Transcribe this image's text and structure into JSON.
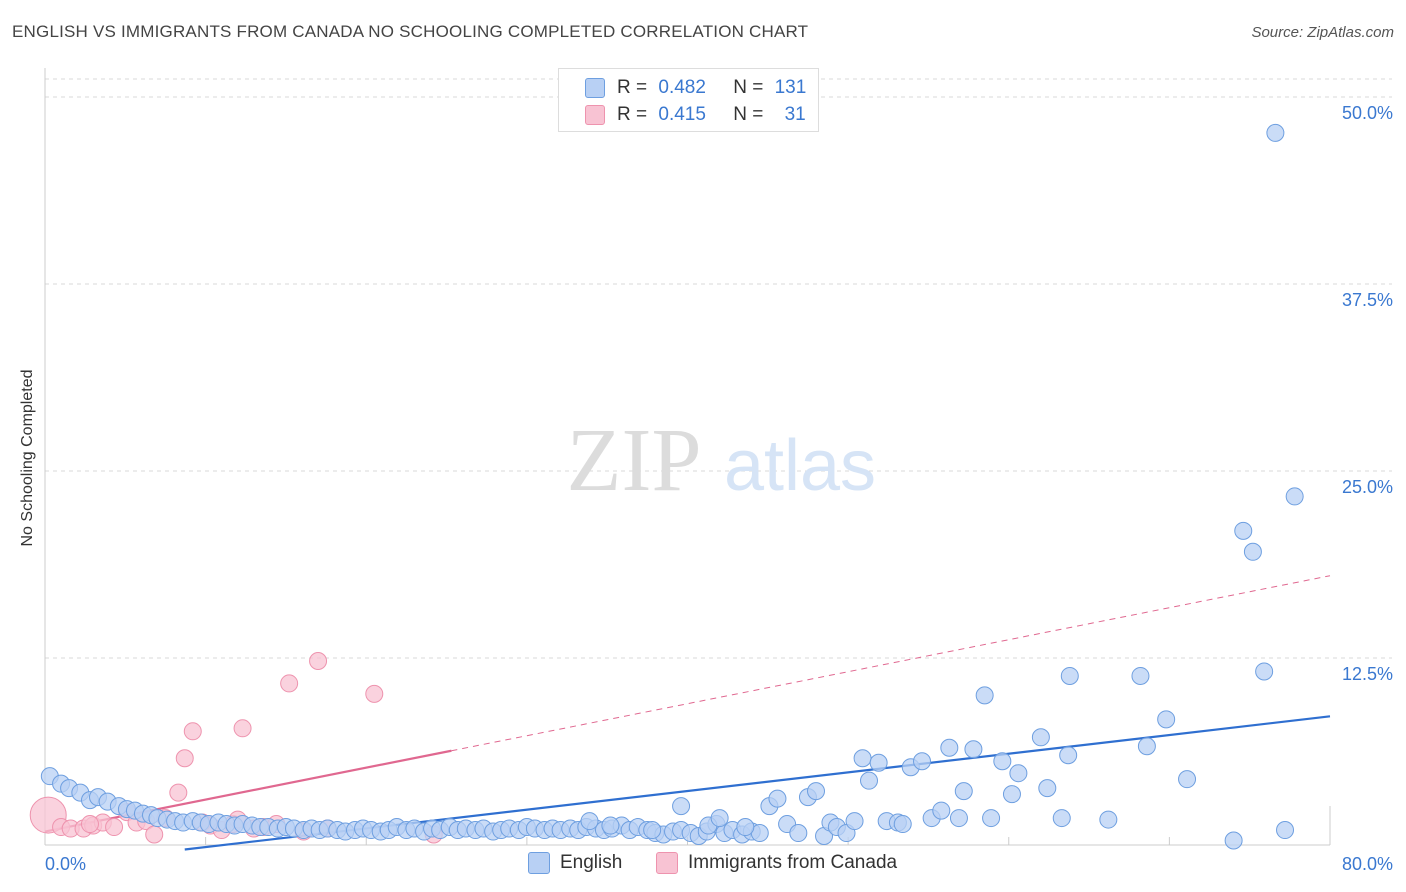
{
  "title": "ENGLISH VS IMMIGRANTS FROM CANADA NO SCHOOLING COMPLETED CORRELATION CHART",
  "source": "Source: ZipAtlas.com",
  "watermark": {
    "zip": "ZIP",
    "atlas": "atlas"
  },
  "legend": {
    "english": {
      "r_label": "R =",
      "r_value": "0.482",
      "n_label": "N =",
      "n_value": "131"
    },
    "canada": {
      "r_label": "R =",
      "r_value": "0.415",
      "n_label": "N =",
      "n_value": "31"
    }
  },
  "colors": {
    "english_fill": "#b8d0f4",
    "english_stroke": "#6e9fe0",
    "english_line": "#2f6fd0",
    "canada_fill": "#f8c3d3",
    "canada_stroke": "#ee93ae",
    "canada_line": "#e06890",
    "grid": "#d8d8d8",
    "axis_text": "#3a78d0"
  },
  "chart_data": {
    "type": "scatter",
    "title": "ENGLISH VS IMMIGRANTS FROM CANADA NO SCHOOLING COMPLETED CORRELATION CHART",
    "xlabel": "",
    "ylabel": "No Schooling Completed",
    "xlim": [
      0,
      80
    ],
    "ylim": [
      0,
      50
    ],
    "x_tick_labels": [
      "0.0%",
      "80.0%"
    ],
    "y_ticks": [
      12.5,
      25.0,
      37.5,
      50.0
    ],
    "y_tick_labels": [
      "12.5%",
      "25.0%",
      "37.5%",
      "50.0%"
    ],
    "grid": true,
    "legend_position": "top-center",
    "series": [
      {
        "name": "English",
        "r": 0.482,
        "n": 131,
        "trend": {
          "x0": 8.7,
          "y0": -0.3,
          "x1": 80.0,
          "y1": 8.6
        },
        "points": [
          [
            0.3,
            4.6
          ],
          [
            1.0,
            4.1
          ],
          [
            1.5,
            3.8
          ],
          [
            2.2,
            3.5
          ],
          [
            2.8,
            3.0
          ],
          [
            3.3,
            3.2
          ],
          [
            3.9,
            2.9
          ],
          [
            4.6,
            2.6
          ],
          [
            5.1,
            2.4
          ],
          [
            5.6,
            2.3
          ],
          [
            6.1,
            2.1
          ],
          [
            6.6,
            2.0
          ],
          [
            7.0,
            1.8
          ],
          [
            7.6,
            1.7
          ],
          [
            8.1,
            1.6
          ],
          [
            8.6,
            1.5
          ],
          [
            9.2,
            1.6
          ],
          [
            9.7,
            1.5
          ],
          [
            10.2,
            1.4
          ],
          [
            10.8,
            1.5
          ],
          [
            11.3,
            1.4
          ],
          [
            11.8,
            1.3
          ],
          [
            12.3,
            1.4
          ],
          [
            12.9,
            1.3
          ],
          [
            13.4,
            1.2
          ],
          [
            13.9,
            1.2
          ],
          [
            14.5,
            1.1
          ],
          [
            15.0,
            1.2
          ],
          [
            15.5,
            1.1
          ],
          [
            16.1,
            1.0
          ],
          [
            16.6,
            1.1
          ],
          [
            17.1,
            1.0
          ],
          [
            17.6,
            1.1
          ],
          [
            18.2,
            1.0
          ],
          [
            18.7,
            0.9
          ],
          [
            19.3,
            1.0
          ],
          [
            19.8,
            1.1
          ],
          [
            20.3,
            1.0
          ],
          [
            20.9,
            0.9
          ],
          [
            21.4,
            1.0
          ],
          [
            21.9,
            1.2
          ],
          [
            22.5,
            1.0
          ],
          [
            23.0,
            1.1
          ],
          [
            23.6,
            0.9
          ],
          [
            24.1,
            1.1
          ],
          [
            24.6,
            1.0
          ],
          [
            25.2,
            1.2
          ],
          [
            25.7,
            1.0
          ],
          [
            26.2,
            1.1
          ],
          [
            26.8,
            1.0
          ],
          [
            27.3,
            1.1
          ],
          [
            27.9,
            0.9
          ],
          [
            28.4,
            1.0
          ],
          [
            28.9,
            1.1
          ],
          [
            29.5,
            1.0
          ],
          [
            30.0,
            1.2
          ],
          [
            30.5,
            1.1
          ],
          [
            31.1,
            1.0
          ],
          [
            31.6,
            1.1
          ],
          [
            32.1,
            1.0
          ],
          [
            32.7,
            1.1
          ],
          [
            33.2,
            1.0
          ],
          [
            33.7,
            1.2
          ],
          [
            34.3,
            1.1
          ],
          [
            34.8,
            1.0
          ],
          [
            35.3,
            1.1
          ],
          [
            35.9,
            1.3
          ],
          [
            36.4,
            1.0
          ],
          [
            36.9,
            1.2
          ],
          [
            37.5,
            1.0
          ],
          [
            38.0,
            0.8
          ],
          [
            38.5,
            0.7
          ],
          [
            39.1,
            0.9
          ],
          [
            39.6,
            1.0
          ],
          [
            40.2,
            0.8
          ],
          [
            40.7,
            0.6
          ],
          [
            41.2,
            0.9
          ],
          [
            41.8,
            1.4
          ],
          [
            42.3,
            0.8
          ],
          [
            42.8,
            1.0
          ],
          [
            43.4,
            0.7
          ],
          [
            44.0,
            0.9
          ],
          [
            44.5,
            0.8
          ],
          [
            33.9,
            1.6
          ],
          [
            35.2,
            1.3
          ],
          [
            37.8,
            1.0
          ],
          [
            39.6,
            2.6
          ],
          [
            41.3,
            1.3
          ],
          [
            42.0,
            1.8
          ],
          [
            43.6,
            1.2
          ],
          [
            45.1,
            2.6
          ],
          [
            45.6,
            3.1
          ],
          [
            46.2,
            1.4
          ],
          [
            46.9,
            0.8
          ],
          [
            47.5,
            3.2
          ],
          [
            48.0,
            3.6
          ],
          [
            48.5,
            0.6
          ],
          [
            48.9,
            1.5
          ],
          [
            49.3,
            1.2
          ],
          [
            49.9,
            0.8
          ],
          [
            50.4,
            1.6
          ],
          [
            50.9,
            5.8
          ],
          [
            51.3,
            4.3
          ],
          [
            51.9,
            5.5
          ],
          [
            52.4,
            1.6
          ],
          [
            53.1,
            1.5
          ],
          [
            53.4,
            1.4
          ],
          [
            53.9,
            5.2
          ],
          [
            54.6,
            5.6
          ],
          [
            55.2,
            1.8
          ],
          [
            55.8,
            2.3
          ],
          [
            56.3,
            6.5
          ],
          [
            56.9,
            1.8
          ],
          [
            57.2,
            3.6
          ],
          [
            57.8,
            6.4
          ],
          [
            58.5,
            10.0
          ],
          [
            58.9,
            1.8
          ],
          [
            59.6,
            5.6
          ],
          [
            60.2,
            3.4
          ],
          [
            60.6,
            4.8
          ],
          [
            62.0,
            7.2
          ],
          [
            62.4,
            3.8
          ],
          [
            63.3,
            1.8
          ],
          [
            63.7,
            6.0
          ],
          [
            63.8,
            11.3
          ],
          [
            66.2,
            1.7
          ],
          [
            68.2,
            11.3
          ],
          [
            68.6,
            6.6
          ],
          [
            69.8,
            8.4
          ],
          [
            71.1,
            4.4
          ],
          [
            74.0,
            0.3
          ],
          [
            74.6,
            21.0
          ],
          [
            75.2,
            19.6
          ],
          [
            75.9,
            11.6
          ],
          [
            76.6,
            47.6
          ],
          [
            77.8,
            23.3
          ],
          [
            77.2,
            1.0
          ]
        ]
      },
      {
        "name": "Immigrants from Canada",
        "r": 0.415,
        "n": 31,
        "trend": {
          "x0": 0.0,
          "y0": 0.9,
          "x1": 25.3,
          "y1": 6.3,
          "dash_x1": 80.0,
          "dash_y1": 18.0
        },
        "points": [
          [
            0.2,
            2.0
          ],
          [
            1.0,
            1.2
          ],
          [
            1.6,
            1.1
          ],
          [
            2.4,
            1.1
          ],
          [
            3.0,
            1.3
          ],
          [
            3.6,
            1.5
          ],
          [
            4.3,
            1.2
          ],
          [
            5.1,
            2.2
          ],
          [
            5.7,
            1.5
          ],
          [
            6.3,
            1.6
          ],
          [
            6.8,
            0.7
          ],
          [
            7.5,
            1.8
          ],
          [
            8.3,
            3.5
          ],
          [
            8.7,
            5.8
          ],
          [
            9.2,
            7.6
          ],
          [
            9.8,
            1.5
          ],
          [
            10.3,
            1.3
          ],
          [
            11.0,
            1.0
          ],
          [
            11.7,
            1.4
          ],
          [
            12.3,
            7.8
          ],
          [
            13.0,
            1.1
          ],
          [
            13.6,
            1.2
          ],
          [
            14.4,
            1.4
          ],
          [
            15.2,
            10.8
          ],
          [
            16.1,
            0.9
          ],
          [
            17.0,
            12.3
          ],
          [
            17.6,
            1.1
          ],
          [
            20.5,
            10.1
          ],
          [
            24.2,
            0.7
          ],
          [
            2.8,
            1.4
          ],
          [
            12.0,
            1.7
          ]
        ]
      }
    ]
  }
}
